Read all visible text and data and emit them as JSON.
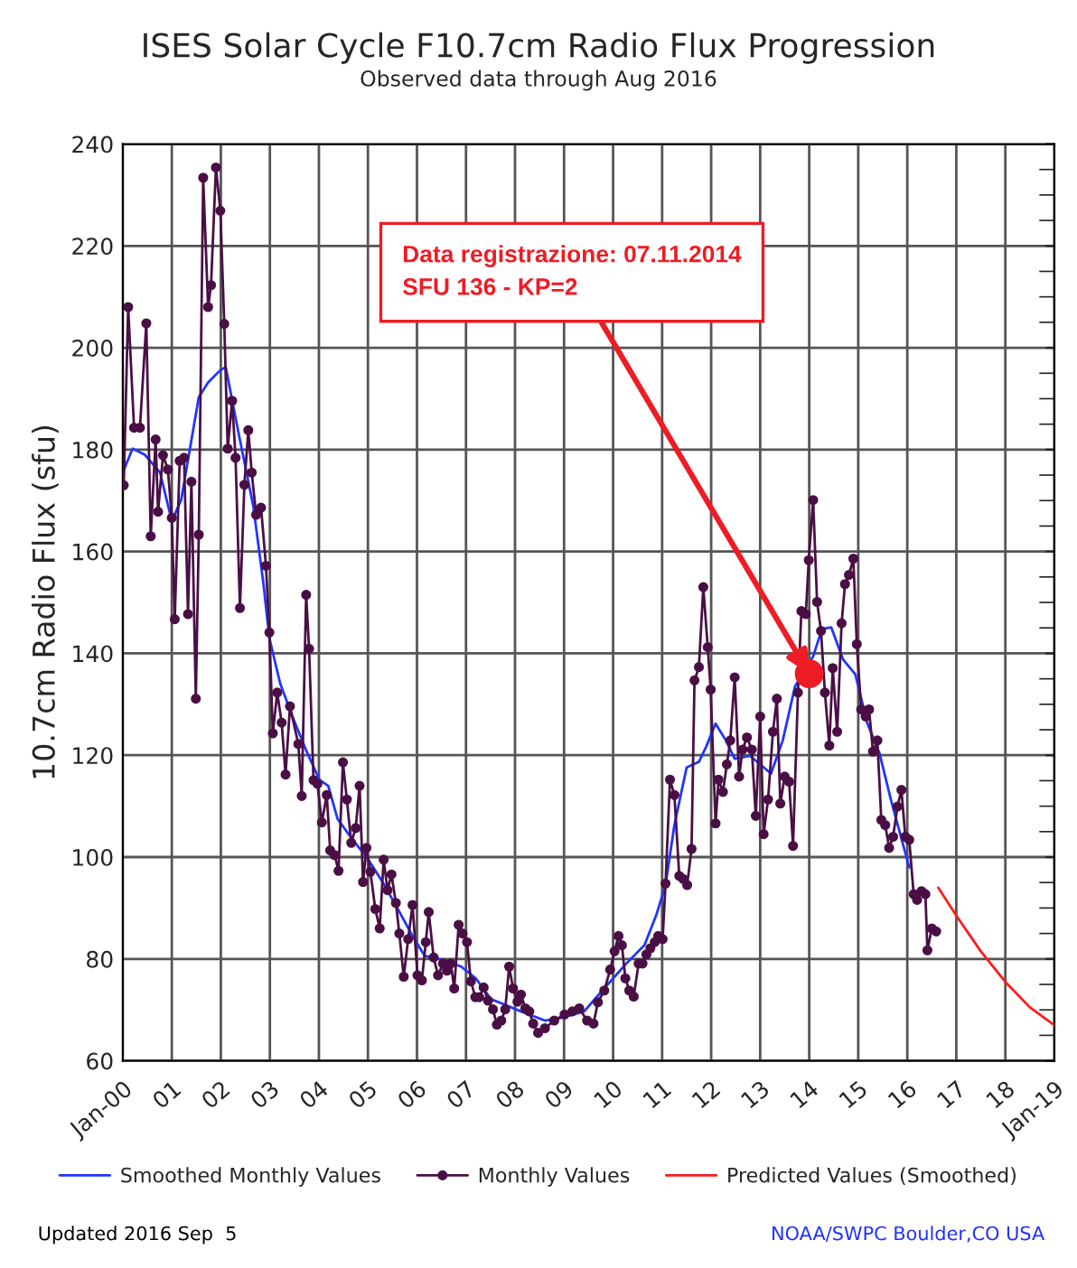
{
  "chart_data": {
    "type": "line",
    "title": "ISES Solar Cycle F10.7cm Radio Flux Progression",
    "subtitle": "Observed data through Aug 2016",
    "ylabel": "10.7cm Radio Flux (sfu)",
    "xlim": [
      2000,
      2019
    ],
    "ylim": [
      60,
      240
    ],
    "xticks": [
      {
        "value": 2000,
        "label": "Jan-00"
      },
      {
        "value": 2001,
        "label": "01"
      },
      {
        "value": 2002,
        "label": "02"
      },
      {
        "value": 2003,
        "label": "03"
      },
      {
        "value": 2004,
        "label": "04"
      },
      {
        "value": 2005,
        "label": "05"
      },
      {
        "value": 2006,
        "label": "06"
      },
      {
        "value": 2007,
        "label": "07"
      },
      {
        "value": 2008,
        "label": "08"
      },
      {
        "value": 2009,
        "label": "09"
      },
      {
        "value": 2010,
        "label": "10"
      },
      {
        "value": 2011,
        "label": "11"
      },
      {
        "value": 2012,
        "label": "12"
      },
      {
        "value": 2013,
        "label": "13"
      },
      {
        "value": 2014,
        "label": "14"
      },
      {
        "value": 2015,
        "label": "15"
      },
      {
        "value": 2016,
        "label": "16"
      },
      {
        "value": 2017,
        "label": "17"
      },
      {
        "value": 2018,
        "label": "18"
      },
      {
        "value": 2019,
        "label": "Jan-19"
      }
    ],
    "yticks": [
      60,
      80,
      100,
      120,
      140,
      160,
      180,
      200,
      220,
      240
    ],
    "grid": true,
    "legend": "bottom",
    "series": [
      {
        "name": "Smoothed Monthly Values",
        "marker": "none",
        "color": "#2035ff",
        "x": [
          2000.0,
          2000.2,
          2000.45,
          2000.76,
          2001.0,
          2001.19,
          2001.55,
          2001.74,
          2001.99,
          2002.1,
          2002.35,
          2002.66,
          2002.87,
          2002.99,
          2003.21,
          2003.46,
          2003.76,
          2004.01,
          2004.19,
          2004.38,
          2004.69,
          2004.99,
          2005.3,
          2005.61,
          2005.91,
          2006.16,
          2006.59,
          2006.9,
          2007.2,
          2007.51,
          2007.75,
          2008.12,
          2008.61,
          2008.98,
          2009.41,
          2009.78,
          2010.27,
          2010.64,
          2010.88,
          2011.07,
          2011.25,
          2011.5,
          2011.75,
          2011.9,
          2012.09,
          2012.3,
          2012.48,
          2012.79,
          2013.22,
          2013.46,
          2013.71,
          2014.08,
          2014.26,
          2014.45,
          2014.69,
          2014.94,
          2015.18,
          2015.43,
          2015.67,
          2016.04
        ],
        "values": [
          175.5,
          180.2,
          179.0,
          175.5,
          166.0,
          170.1,
          190.3,
          193.2,
          195.6,
          196.2,
          183.8,
          169.0,
          153.6,
          143.0,
          134.1,
          127.6,
          120.5,
          115.2,
          114.0,
          107.5,
          103.4,
          99.8,
          95.1,
          89.8,
          84.5,
          80.6,
          79.7,
          78.5,
          76.2,
          72.1,
          71.2,
          69.7,
          67.9,
          68.5,
          69.7,
          73.8,
          79.1,
          82.7,
          88.6,
          94.5,
          106.3,
          117.6,
          118.7,
          121.7,
          126.2,
          122.9,
          119.3,
          119.9,
          116.4,
          122.9,
          133.5,
          139.4,
          144.8,
          145.1,
          138.8,
          135.9,
          126.4,
          120.5,
          111.1,
          98.0
        ]
      },
      {
        "name": "Monthly Values",
        "marker": "circle",
        "color": "#4a0f45",
        "x": [
          2000.02,
          2000.11,
          2000.23,
          2000.35,
          2000.48,
          2000.57,
          2000.67,
          2000.72,
          2000.82,
          2000.92,
          2001.0,
          2001.06,
          2001.16,
          2001.25,
          2001.33,
          2001.4,
          2001.49,
          2001.55,
          2001.64,
          2001.74,
          2001.8,
          2001.9,
          2001.99,
          2002.07,
          2002.14,
          2002.23,
          2002.3,
          2002.39,
          2002.48,
          2002.56,
          2002.63,
          2002.72,
          2002.82,
          2002.92,
          2002.99,
          2003.06,
          2003.15,
          2003.24,
          2003.32,
          2003.41,
          2003.58,
          2003.65,
          2003.74,
          2003.8,
          2003.89,
          2003.97,
          2004.06,
          2004.16,
          2004.23,
          2004.32,
          2004.4,
          2004.49,
          2004.57,
          2004.66,
          2004.75,
          2004.83,
          2004.9,
          2004.97,
          2005.05,
          2005.15,
          2005.24,
          2005.32,
          2005.4,
          2005.48,
          2005.57,
          2005.64,
          2005.73,
          2005.82,
          2005.91,
          2006.01,
          2006.1,
          2006.18,
          2006.24,
          2006.34,
          2006.43,
          2006.53,
          2006.61,
          2006.69,
          2006.76,
          2006.85,
          2006.93,
          2007.02,
          2007.1,
          2007.19,
          2007.27,
          2007.36,
          2007.45,
          2007.55,
          2007.63,
          2007.72,
          2007.8,
          2007.88,
          2007.96,
          2008.05,
          2008.12,
          2008.21,
          2008.29,
          2008.37,
          2008.47,
          2008.61,
          2008.8,
          2009.01,
          2009.17,
          2009.31,
          2009.47,
          2009.6,
          2009.69,
          2009.82,
          2009.94,
          2010.03,
          2010.11,
          2010.18,
          2010.25,
          2010.33,
          2010.42,
          2010.52,
          2010.6,
          2010.68,
          2010.76,
          2010.85,
          2010.92,
          2011.01,
          2011.07,
          2011.16,
          2011.25,
          2011.35,
          2011.43,
          2011.51,
          2011.6,
          2011.66,
          2011.75,
          2011.84,
          2011.93,
          2011.99,
          2012.09,
          2012.15,
          2012.24,
          2012.32,
          2012.39,
          2012.48,
          2012.57,
          2012.64,
          2012.73,
          2012.83,
          2012.91,
          2013.0,
          2013.07,
          2013.16,
          2013.26,
          2013.34,
          2013.41,
          2013.5,
          2013.59,
          2013.67,
          2013.77,
          2013.84,
          2013.93,
          2013.99,
          2014.08,
          2014.16,
          2014.24,
          2014.32,
          2014.41,
          2014.48,
          2014.57,
          2014.66,
          2014.73,
          2014.81,
          2014.9,
          2014.97,
          2015.06,
          2015.15,
          2015.22,
          2015.3,
          2015.39,
          2015.47,
          2015.55,
          2015.63,
          2015.71,
          2015.8,
          2015.88,
          2015.96,
          2016.04,
          2016.13,
          2016.2,
          2016.29,
          2016.37,
          2016.41,
          2016.5,
          2016.59
        ],
        "values": [
          173.0,
          208.0,
          184.3,
          184.3,
          204.8,
          163.0,
          182.0,
          167.8,
          178.9,
          176.1,
          166.6,
          146.7,
          177.8,
          178.4,
          147.7,
          173.7,
          131.1,
          163.3,
          233.4,
          208.0,
          212.3,
          235.4,
          226.9,
          204.7,
          180.2,
          189.6,
          178.4,
          148.9,
          173.1,
          183.8,
          175.5,
          167.2,
          168.6,
          157.2,
          144.1,
          124.3,
          132.3,
          126.4,
          116.2,
          129.6,
          122.2,
          112.0,
          151.5,
          140.9,
          115.1,
          114.4,
          106.8,
          112.2,
          101.3,
          100.4,
          97.3,
          118.6,
          111.3,
          102.8,
          105.7,
          114.0,
          95.1,
          101.8,
          97.1,
          89.8,
          86.0,
          99.5,
          93.5,
          96.6,
          91.0,
          85.0,
          76.5,
          83.9,
          90.6,
          76.8,
          75.8,
          83.3,
          89.2,
          80.3,
          76.8,
          79.1,
          77.7,
          79.1,
          74.2,
          86.7,
          85.0,
          83.3,
          75.6,
          72.5,
          72.5,
          74.4,
          71.8,
          70.1,
          67.1,
          67.9,
          70.1,
          78.5,
          74.2,
          71.6,
          73.0,
          70.3,
          69.7,
          67.3,
          65.5,
          66.4,
          67.9,
          69.1,
          69.7,
          70.3,
          67.9,
          67.3,
          71.5,
          73.8,
          77.9,
          81.5,
          84.5,
          82.7,
          76.2,
          73.8,
          72.6,
          79.1,
          79.1,
          80.9,
          82.1,
          83.3,
          84.5,
          83.9,
          94.8,
          115.2,
          112.2,
          96.3,
          95.7,
          94.5,
          101.6,
          134.7,
          137.3,
          153.0,
          141.2,
          132.9,
          106.6,
          115.2,
          112.8,
          118.2,
          122.9,
          135.3,
          115.8,
          121.1,
          123.5,
          121.1,
          108.1,
          127.6,
          104.5,
          111.3,
          124.6,
          131.1,
          110.5,
          115.8,
          114.8,
          102.2,
          132.3,
          148.3,
          147.7,
          158.3,
          170.1,
          150.1,
          144.4,
          132.3,
          121.9,
          137.1,
          124.6,
          145.9,
          153.6,
          155.4,
          158.6,
          141.8,
          129.0,
          127.6,
          129.0,
          120.7,
          122.9,
          107.3,
          106.3,
          101.8,
          104.0,
          109.9,
          113.2,
          104.0,
          103.4,
          92.7,
          91.6,
          93.3,
          92.7,
          81.7,
          86.0,
          85.4
        ]
      },
      {
        "name": "Predicted Values (Smoothed)",
        "marker": "none",
        "color": "#ff1a1a",
        "x": [
          2016.63,
          2017.0,
          2017.5,
          2018.0,
          2018.5,
          2019.0
        ],
        "values": [
          94.0,
          88.5,
          81.5,
          75.5,
          70.5,
          67.0
        ]
      }
    ],
    "annotations": [
      {
        "text": "Data registrazione: 07.11.2014\nSFU 136 - KP=2",
        "x": 2014.0,
        "y": 136
      },
      "Updated 2016 Sep  5",
      "NOAA/SWPC Boulder,CO USA"
    ]
  }
}
